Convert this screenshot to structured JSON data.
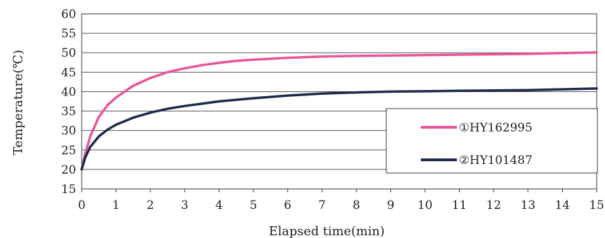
{
  "chart_data": {
    "type": "line",
    "xlabel": "Elapsed time(min)",
    "ylabel": "Temperature(℃)",
    "xlim": [
      0,
      15
    ],
    "ylim": [
      15,
      60
    ],
    "x_ticks": [
      0,
      1,
      2,
      3,
      4,
      5,
      6,
      7,
      8,
      9,
      10,
      11,
      12,
      13,
      14,
      15
    ],
    "y_ticks": [
      15,
      20,
      25,
      30,
      35,
      40,
      45,
      50,
      55,
      60
    ],
    "grid": "horizontal",
    "legend_position": "right",
    "series": [
      {
        "name": "①HY162995",
        "color": "#e8559b",
        "x": [
          0,
          0.1,
          0.25,
          0.5,
          0.75,
          1,
          1.5,
          2,
          2.5,
          3,
          3.5,
          4,
          4.5,
          5,
          6,
          7,
          8,
          9,
          10,
          11,
          12,
          13,
          14,
          15
        ],
        "y": [
          20,
          24,
          28.5,
          33.5,
          36.5,
          38.5,
          41.5,
          43.5,
          45,
          46,
          46.8,
          47.4,
          47.9,
          48.2,
          48.7,
          49,
          49.2,
          49.3,
          49.4,
          49.5,
          49.6,
          49.7,
          49.9,
          50.1
        ]
      },
      {
        "name": "②HY101487",
        "color": "#1d2a4d",
        "x": [
          0,
          0.1,
          0.25,
          0.5,
          0.75,
          1,
          1.5,
          2,
          2.5,
          3,
          3.5,
          4,
          4.5,
          5,
          6,
          7,
          8,
          9,
          10,
          11,
          12,
          13,
          14,
          15
        ],
        "y": [
          20,
          23,
          25.8,
          28.5,
          30.2,
          31.5,
          33.3,
          34.6,
          35.6,
          36.3,
          36.9,
          37.5,
          37.9,
          38.3,
          39,
          39.5,
          39.8,
          40,
          40.1,
          40.2,
          40.3,
          40.4,
          40.6,
          40.8
        ]
      }
    ]
  }
}
